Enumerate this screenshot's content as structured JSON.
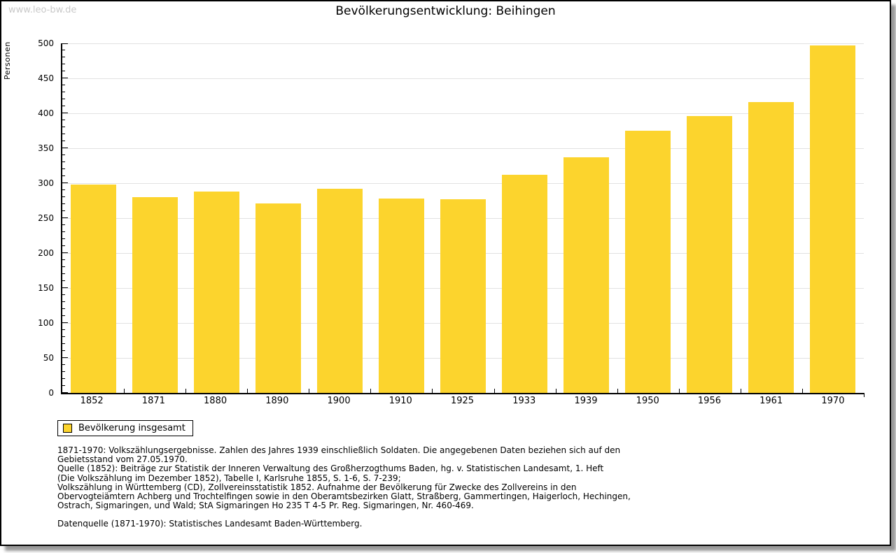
{
  "page": {
    "watermark": "www.leo-bw.de"
  },
  "chart_data": {
    "type": "bar",
    "title": "Bevölkerungsentwicklung: Beihingen",
    "xlabel": "",
    "ylabel": "Personen",
    "categories": [
      "1852",
      "1871",
      "1880",
      "1890",
      "1900",
      "1910",
      "1925",
      "1933",
      "1939",
      "1950",
      "1956",
      "1961",
      "1970"
    ],
    "values": [
      298,
      280,
      288,
      271,
      292,
      278,
      277,
      312,
      337,
      375,
      396,
      416,
      497
    ],
    "ylim": [
      0,
      500
    ],
    "y_major_step": 50,
    "y_minor_step": 10,
    "grid": true,
    "bar_color": "#FCD42D",
    "legend_position": "bottom-left"
  },
  "legend": {
    "label": "Bevölkerung insgesamt",
    "swatch_color": "#FCD42D"
  },
  "footnotes": {
    "lines": [
      "1871-1970: Volkszählungsergebnisse. Zahlen des Jahres 1939 einschließlich Soldaten. Die angegebenen Daten beziehen sich auf den",
      "Gebietsstand vom 27.05.1970.",
      "Quelle (1852): Beiträge zur Statistik der Inneren Verwaltung des Großherzogthums Baden, hg. v. Statistischen Landesamt, 1. Heft",
      "(Die Volkszählung im Dezember 1852), Tabelle I, Karlsruhe 1855, S. 1-6, S. 7-239;",
      "Volkszählung in Württemberg (CD), Zollvereinsstatistik 1852. Aufnahme der Bevölkerung für Zwecke des Zollvereins in den",
      "Obervogteiämtern Achberg und Trochtelfingen sowie in den Oberamtsbezirken Glatt, Straßberg, Gammertingen, Haigerloch, Hechingen,",
      "Ostrach, Sigmaringen, und Wald; StA Sigmaringen Ho 235 T 4-5 Pr. Reg. Sigmaringen, Nr. 460-469."
    ],
    "datasource": "Datenquelle (1871-1970): Statistisches Landesamt Baden-Württemberg."
  }
}
